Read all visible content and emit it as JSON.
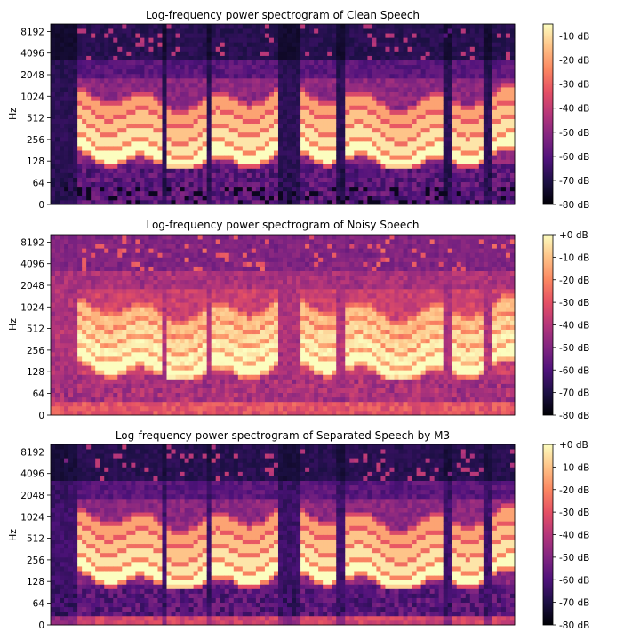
{
  "figure": {
    "cmap": [
      "#000004",
      "#1c1044",
      "#4f127b",
      "#812581",
      "#b5367a",
      "#e55064",
      "#fb8761",
      "#fec287",
      "#fcfdbf"
    ]
  },
  "chart_data": [
    {
      "type": "heatmap",
      "title": "Log-frequency power spectrogram of Clean Speech",
      "ylabel": "Hz",
      "xlabel": "",
      "y_scale": "log",
      "y_ticks": [
        "0",
        "64",
        "128",
        "256",
        "512",
        "1024",
        "2048",
        "4096",
        "8192"
      ],
      "colorbar_ticks": [
        "-10 dB",
        "-20 dB",
        "-30 dB",
        "-40 dB",
        "-50 dB",
        "-60 dB",
        "-70 dB",
        "-80 dB"
      ],
      "colorbar_range_db": [
        -80,
        -5
      ],
      "grid": false
    },
    {
      "type": "heatmap",
      "title": "Log-frequency power spectrogram of Noisy Speech",
      "ylabel": "Hz",
      "xlabel": "",
      "y_scale": "log",
      "y_ticks": [
        "0",
        "64",
        "128",
        "256",
        "512",
        "1024",
        "2048",
        "4096",
        "8192"
      ],
      "colorbar_ticks": [
        "+0 dB",
        "-10 dB",
        "-20 dB",
        "-30 dB",
        "-40 dB",
        "-50 dB",
        "-60 dB",
        "-70 dB",
        "-80 dB"
      ],
      "colorbar_range_db": [
        -80,
        0
      ],
      "grid": false
    },
    {
      "type": "heatmap",
      "title": "Log-frequency power spectrogram of Separated Speech by M3",
      "ylabel": "Hz",
      "xlabel": "",
      "y_scale": "log",
      "y_ticks": [
        "0",
        "64",
        "128",
        "256",
        "512",
        "1024",
        "2048",
        "4096",
        "8192"
      ],
      "colorbar_ticks": [
        "+0 dB",
        "-10 dB",
        "-20 dB",
        "-30 dB",
        "-40 dB",
        "-50 dB",
        "-60 dB",
        "-70 dB",
        "-80 dB"
      ],
      "colorbar_range_db": [
        -80,
        0
      ],
      "grid": false
    }
  ]
}
